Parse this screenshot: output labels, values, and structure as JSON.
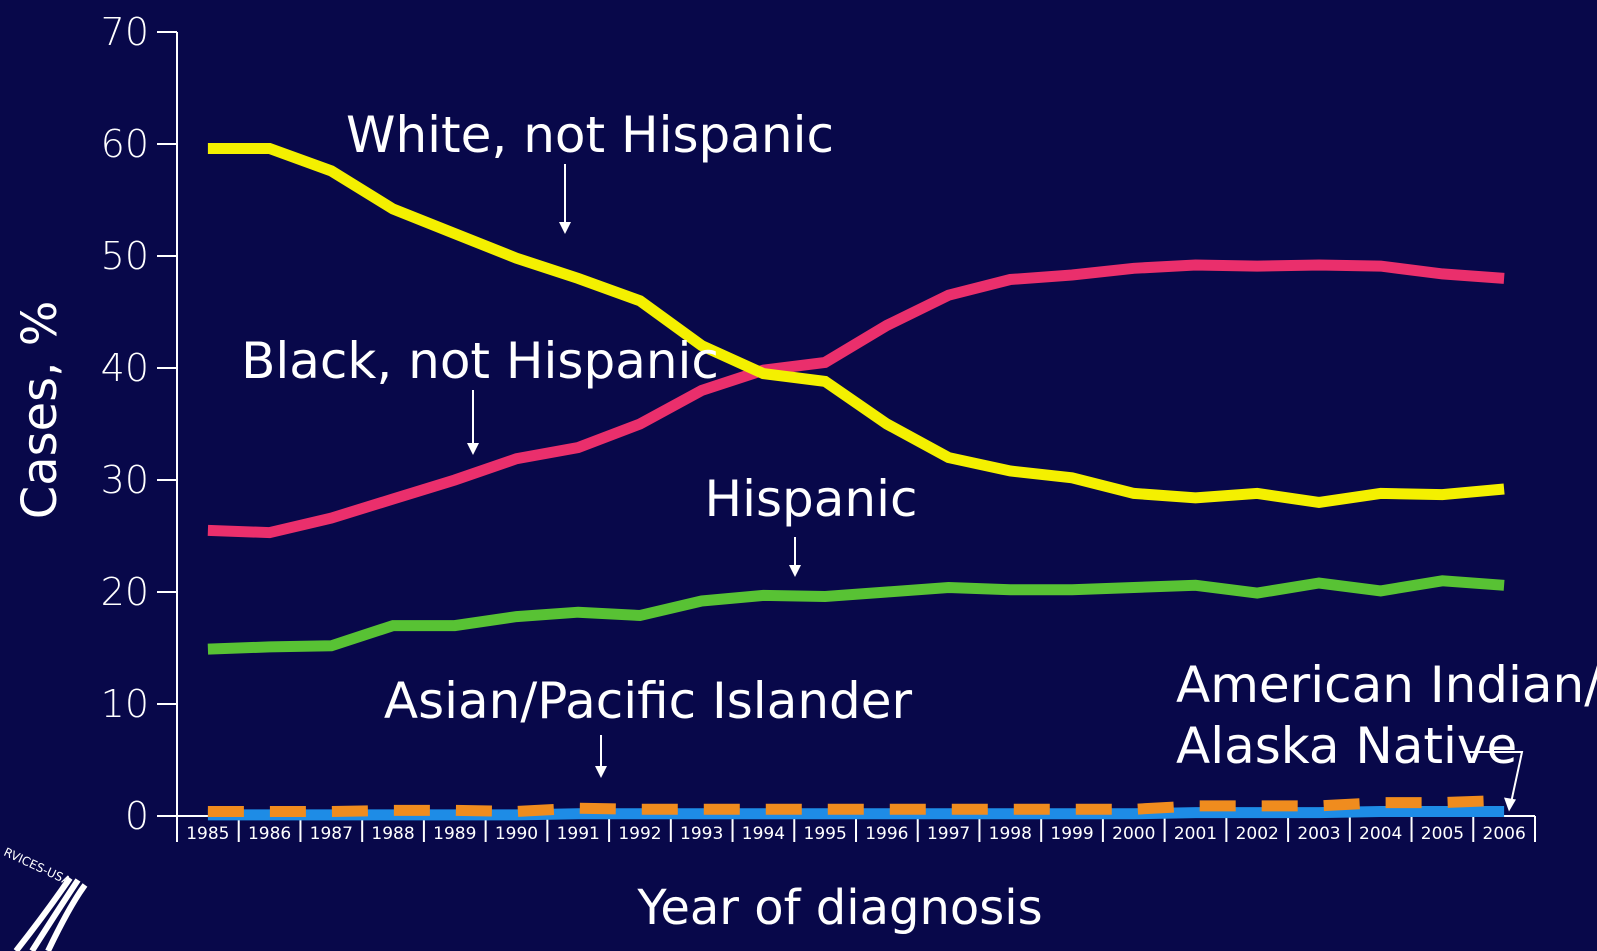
{
  "chart_data": {
    "type": "line",
    "xlabel": "Year of diagnosis",
    "ylabel": "Cases, %",
    "ylim": [
      0,
      70
    ],
    "yticks": [
      "0",
      "10",
      "20",
      "30",
      "40",
      "50",
      "60",
      "70"
    ],
    "categories": [
      "1985",
      "1986",
      "1987",
      "1988",
      "1989",
      "1990",
      "1991",
      "1992",
      "1993",
      "1994",
      "1995",
      "1996",
      "1997",
      "1998",
      "1999",
      "2000",
      "2001",
      "2002",
      "2003",
      "2004",
      "2005",
      "2006"
    ],
    "grid": false,
    "series": [
      {
        "name": "White, not Hispanic",
        "color": "#f4f000",
        "dashed": false,
        "values": [
          59.6,
          59.6,
          57.6,
          54.2,
          52.0,
          49.8,
          48.0,
          46.0,
          42.0,
          39.5,
          38.8,
          35.0,
          32.0,
          30.8,
          30.2,
          28.8,
          28.4,
          28.8,
          28.0,
          28.8,
          28.7,
          29.2
        ]
      },
      {
        "name": "Black, not Hispanic",
        "color": "#ea2f6c",
        "dashed": false,
        "values": [
          25.5,
          25.3,
          26.6,
          28.3,
          30.0,
          31.9,
          32.9,
          35.0,
          38.0,
          39.8,
          40.5,
          43.8,
          46.5,
          47.9,
          48.3,
          48.9,
          49.2,
          49.1,
          49.2,
          49.1,
          48.4,
          48.0
        ]
      },
      {
        "name": "Hispanic",
        "color": "#58c234",
        "dashed": false,
        "values": [
          14.9,
          15.1,
          15.2,
          17.0,
          17.0,
          17.8,
          18.2,
          17.9,
          19.2,
          19.7,
          19.6,
          20.0,
          20.4,
          20.2,
          20.2,
          20.4,
          20.6,
          19.9,
          20.8,
          20.1,
          21.0,
          20.6
        ]
      },
      {
        "name": "Asian/Pacific Islander",
        "color": "#f08c1e",
        "dashed": true,
        "values": [
          0.4,
          0.4,
          0.4,
          0.5,
          0.5,
          0.4,
          0.7,
          0.6,
          0.6,
          0.6,
          0.6,
          0.6,
          0.6,
          0.6,
          0.6,
          0.6,
          0.9,
          0.9,
          0.9,
          1.2,
          1.2,
          1.4
        ]
      },
      {
        "name": "American Indian/\nAlaska Native",
        "color": "#1e8ce6",
        "dashed": false,
        "values": [
          0.1,
          0.1,
          0.1,
          0.1,
          0.1,
          0.1,
          0.2,
          0.2,
          0.2,
          0.2,
          0.2,
          0.2,
          0.2,
          0.2,
          0.2,
          0.2,
          0.3,
          0.3,
          0.3,
          0.4,
          0.4,
          0.4
        ]
      }
    ],
    "annotations": [
      {
        "text": "White, not Hispanic",
        "series": 0
      },
      {
        "text": "Black, not Hispanic",
        "series": 1
      },
      {
        "text": "Hispanic",
        "series": 2
      },
      {
        "text": "Asian/Pacific Islander",
        "series": 3
      },
      {
        "lines": [
          "American Indian/",
          "Alaska Native"
        ],
        "series": 4
      }
    ]
  },
  "logo": {
    "text": "RVICES-USA"
  }
}
